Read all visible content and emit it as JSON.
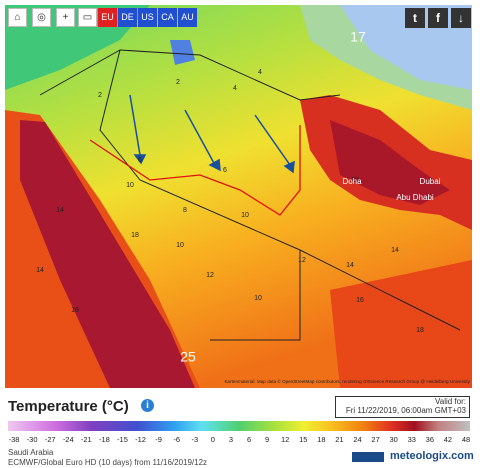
{
  "toolbar": {
    "regions": [
      "EU",
      "DE",
      "US",
      "CA",
      "AU"
    ]
  },
  "map": {
    "labels": [
      "2",
      "2",
      "4",
      "4",
      "6",
      "6",
      "8",
      "10",
      "10",
      "10",
      "10",
      "12",
      "12",
      "14",
      "14",
      "14",
      "14",
      "16",
      "16",
      "18",
      "18",
      "20",
      "25",
      "17"
    ],
    "places": [
      "Doha",
      "Dubai",
      "Abu Dhabi"
    ],
    "attribution": "Kartenmaterial: Map data © OpenStreetMap contributors, rendering GIScience Research Group @ Heidelberg University"
  },
  "legend": {
    "title": "Temperature (°C)",
    "valid_label": "Valid for:",
    "valid_time": "Fri 11/22/2019, 06:00am GMT+03",
    "ticks": [
      -38,
      -30,
      -27,
      -24,
      -21,
      -18,
      -15,
      -12,
      -9,
      -6,
      -3,
      0,
      3,
      6,
      9,
      12,
      15,
      18,
      21,
      24,
      27,
      30,
      33,
      36,
      42,
      48
    ]
  },
  "footer": {
    "region": "Saudi Arabia",
    "model": "ECMWF/Global Euro HD (10 days) from 11/16/2019/12z",
    "logo": "meteologix.com"
  }
}
